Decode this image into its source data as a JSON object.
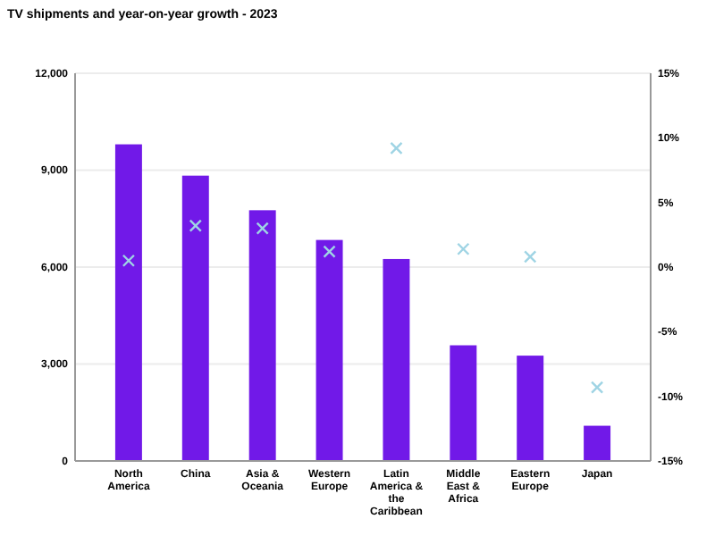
{
  "chart_data": {
    "type": "bar",
    "title": "TV shipments and year-on-year growth - 2023",
    "categories": [
      "North America",
      "China",
      "Asia & Oceania",
      "Western Europe",
      "Latin America & the Caribbean",
      "Middle East & Africa",
      "Eastern Europe",
      "Japan"
    ],
    "series": [
      {
        "color": "#7119e8",
        "values": [
          9800,
          8830,
          7760,
          6840,
          6250,
          3580,
          3260,
          1090
        ]
      },
      {
        "type": "scatter",
        "axis": "y2",
        "marker": "cross",
        "color": "#9fd4e4",
        "values": [
          0.5,
          3.2,
          3.0,
          1.2,
          9.2,
          1.4,
          0.8,
          -9.3
        ]
      }
    ],
    "ylim": [
      0,
      12000
    ],
    "yticks": [
      {
        "value": 0,
        "label": "0"
      },
      {
        "value": 3000,
        "label": "3,000"
      },
      {
        "value": 6000,
        "label": "6,000"
      },
      {
        "value": 9000,
        "label": "9,000"
      },
      {
        "value": 12000,
        "label": "12,000"
      }
    ],
    "y2lim": [
      -15,
      15
    ],
    "y2ticks": [
      {
        "value": -15,
        "label": "-15%"
      },
      {
        "value": -10,
        "label": "-10%"
      },
      {
        "value": -5,
        "label": "-5%"
      },
      {
        "value": 0,
        "label": "0%"
      },
      {
        "value": 5,
        "label": "5%"
      },
      {
        "value": 10,
        "label": "10%"
      },
      {
        "value": 15,
        "label": "15%"
      }
    ],
    "grid": "y"
  }
}
